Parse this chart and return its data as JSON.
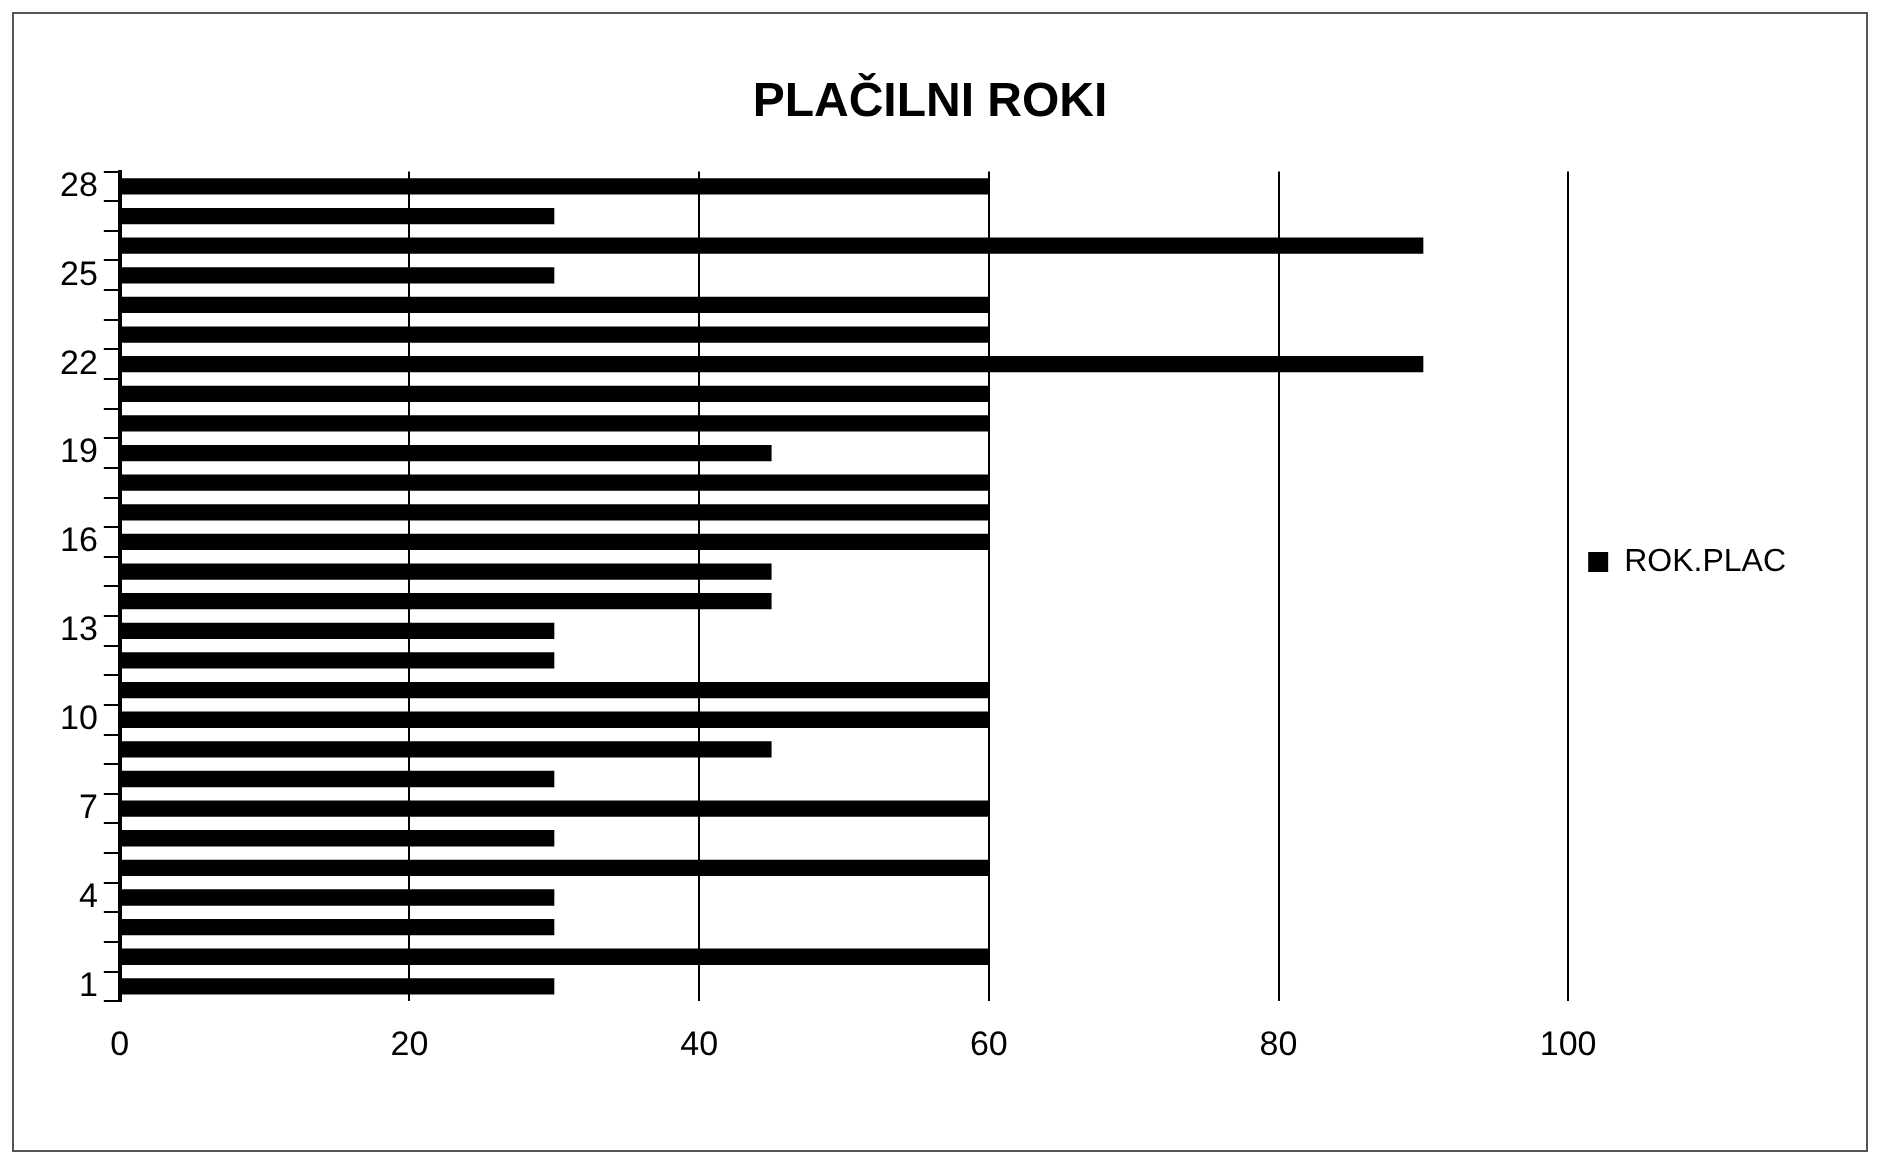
{
  "chart_data": {
    "type": "bar",
    "orientation": "horizontal",
    "title": "PLAČILNI ROKI",
    "categories": [
      "28",
      null,
      null,
      "25",
      null,
      null,
      "22",
      null,
      null,
      "19",
      null,
      null,
      "16",
      null,
      null,
      "13",
      null,
      null,
      "10",
      null,
      null,
      "7",
      null,
      null,
      "4",
      null,
      null,
      "1"
    ],
    "series": [
      {
        "name": "ROK.PLAC",
        "color": "#000000",
        "values": [
          60,
          30,
          90,
          30,
          60,
          60,
          90,
          60,
          60,
          45,
          60,
          60,
          60,
          45,
          45,
          30,
          30,
          60,
          60,
          45,
          30,
          60,
          30,
          60,
          30,
          30,
          60,
          30
        ]
      }
    ],
    "xlim": [
      0,
      100
    ],
    "xticks": [
      0,
      20,
      40,
      60,
      80,
      100
    ],
    "grid": "x",
    "legend": "right"
  }
}
